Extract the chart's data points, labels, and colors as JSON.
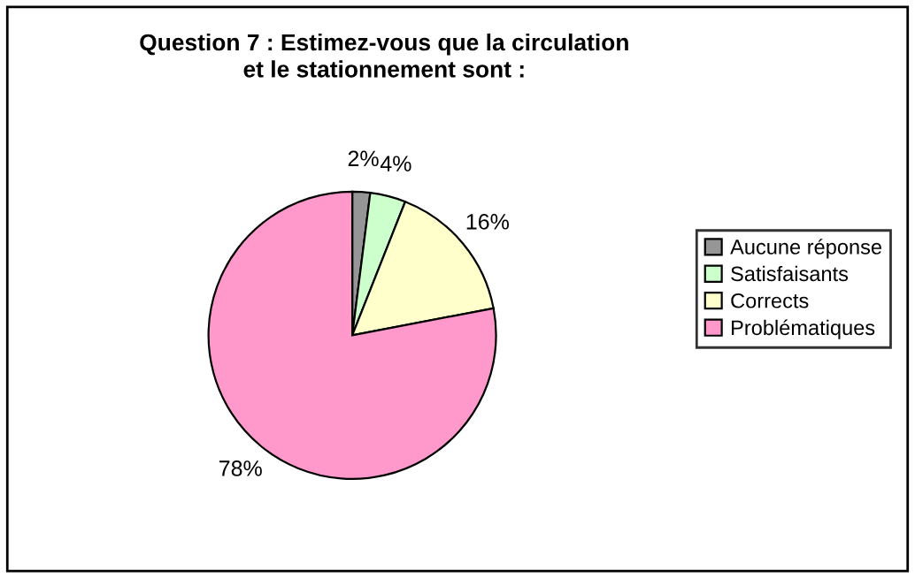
{
  "chart_data": {
    "type": "pie",
    "title": "Question 7 : Estimez-vous que la circulation\net le stationnement sont :",
    "categories": [
      "Aucune réponse",
      "Satisfaisants",
      "Corrects",
      "Problématiques"
    ],
    "values": [
      2,
      4,
      16,
      78
    ],
    "colors": [
      "#969696",
      "#ccffcc",
      "#ffffcc",
      "#ff99cc"
    ],
    "value_labels": [
      "2%",
      "4%",
      "16%",
      "78%"
    ],
    "legend": "right"
  }
}
